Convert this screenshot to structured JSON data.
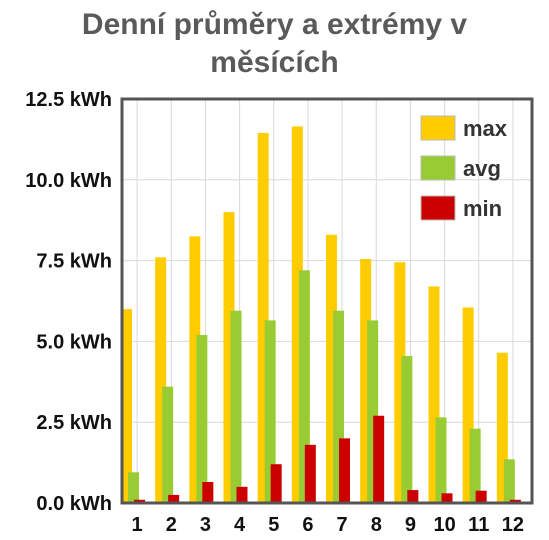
{
  "chart_data": {
    "type": "bar",
    "title_lines": [
      "Denní průměry a extrémy v",
      "měsících"
    ],
    "categories": [
      "1",
      "2",
      "3",
      "4",
      "5",
      "6",
      "7",
      "8",
      "9",
      "10",
      "11",
      "12"
    ],
    "y_tick_labels": [
      "12.5 kWh",
      "10.0 kWh",
      "7.5 kWh",
      "5.0 kWh",
      "2.5 kWh",
      "0.0 kWh"
    ],
    "y_ticks": [
      12.5,
      10.0,
      7.5,
      5.0,
      2.5,
      0.0
    ],
    "ylim": [
      0,
      12.5
    ],
    "grid": true,
    "legend_position": "top-right",
    "series": [
      {
        "name": "max",
        "color": "#ffcc00",
        "values": [
          6.0,
          7.6,
          8.25,
          9.0,
          11.45,
          11.65,
          8.3,
          7.55,
          7.45,
          6.7,
          6.05,
          4.65
        ]
      },
      {
        "name": "avg",
        "color": "#99cc33",
        "values": [
          0.95,
          3.6,
          5.2,
          5.95,
          5.65,
          7.2,
          5.95,
          5.65,
          4.55,
          2.65,
          2.3,
          1.35
        ]
      },
      {
        "name": "min",
        "color": "#cc0000",
        "values": [
          0.1,
          0.25,
          0.65,
          0.5,
          1.2,
          1.8,
          2.0,
          2.7,
          0.4,
          0.3,
          0.38,
          0.1
        ]
      }
    ]
  }
}
